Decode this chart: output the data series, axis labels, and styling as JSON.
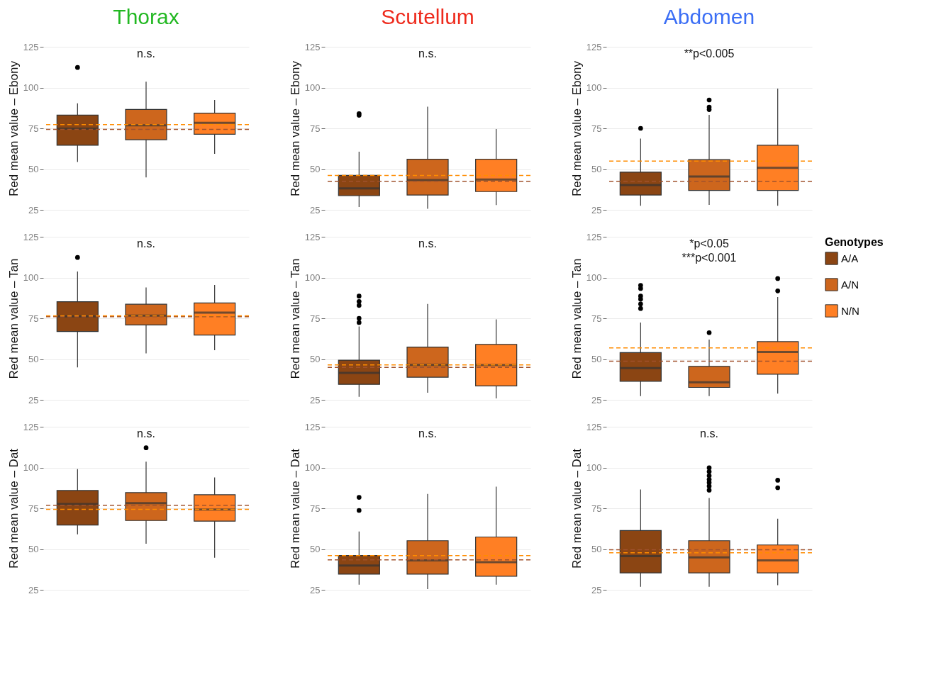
{
  "chart_data": [
    {
      "type": "box",
      "title": "Thorax",
      "ylabel": "Red mean value – Ebony",
      "categories": [
        null,
        null,
        null
      ],
      "ylim": [
        25,
        125
      ],
      "yticks": [
        25,
        50,
        75,
        100,
        125
      ],
      "grid": "y",
      "tick_labels": "y",
      "legend": false,
      "series": [
        {
          "color": "#8b4513",
          "boxes": [
            {
              "low": 54.4,
              "q1": 64.6,
              "median": 74.8,
              "q3": 83.1,
              "high": 90.3,
              "outliers": [
                112.3
              ]
            },
            null,
            null
          ]
        },
        {
          "color": "#cd661d",
          "boxes": [
            null,
            {
              "low": 44.9,
              "q1": 68,
              "median": 76.9,
              "q3": 86.6,
              "high": 103.6
            },
            null
          ]
        },
        {
          "color": "#ff7f24",
          "boxes": [
            null,
            null,
            {
              "low": 59.3,
              "q1": 71.4,
              "median": 78.4,
              "q3": 84.3,
              "high": 92.4
            }
          ]
        }
      ],
      "ref_lines": [
        {
          "axis": "y",
          "value": 74.4,
          "color": "#a0522d",
          "line_style": "dashed"
        },
        {
          "axis": "y",
          "value": 77.3,
          "color": "#ff8c00",
          "line_style": "dashed"
        }
      ],
      "annotations": [
        "n.s."
      ]
    },
    {
      "type": "box",
      "title": "Scutellum",
      "ylabel": "Red mean value – Ebony",
      "categories": [
        null,
        null,
        null
      ],
      "ylim": [
        25,
        125
      ],
      "yticks": [
        25,
        50,
        75,
        100,
        125
      ],
      "grid": "y",
      "tick_labels": "y",
      "legend": false,
      "series": [
        {
          "color": "#8b4513",
          "boxes": [
            {
              "low": 26.7,
              "q1": 33.7,
              "median": 38.1,
              "q3": 46.1,
              "high": 60.7,
              "outliers": [
                83,
                84
              ]
            },
            null,
            null
          ]
        },
        {
          "color": "#cd661d",
          "boxes": [
            null,
            {
              "low": 25.6,
              "q1": 34.1,
              "median": 43.3,
              "q3": 56,
              "high": 88.3
            },
            null
          ]
        },
        {
          "color": "#ff7f24",
          "boxes": [
            null,
            null,
            {
              "low": 27.9,
              "q1": 36.2,
              "median": 43.6,
              "q3": 56,
              "high": 74.6
            }
          ]
        }
      ],
      "ref_lines": [
        {
          "axis": "y",
          "value": 42.5,
          "color": "#a0522d",
          "line_style": "dashed"
        },
        {
          "axis": "y",
          "value": 46.1,
          "color": "#ff8c00",
          "line_style": "dashed"
        }
      ],
      "annotations": [
        "n.s."
      ]
    },
    {
      "type": "box",
      "title": "Abdomen",
      "ylabel": "Red mean value – Ebony",
      "categories": [
        null,
        null,
        null
      ],
      "ylim": [
        25,
        125
      ],
      "yticks": [
        25,
        50,
        75,
        100,
        125
      ],
      "grid": "y",
      "tick_labels": "y",
      "legend": false,
      "series": [
        {
          "color": "#8b4513",
          "boxes": [
            {
              "low": 27.5,
              "q1": 34.1,
              "median": 40.2,
              "q3": 48.1,
              "high": 68.7,
              "outliers": [
                75
              ]
            },
            null,
            null
          ]
        },
        {
          "color": "#cd661d",
          "boxes": [
            null,
            {
              "low": 28,
              "q1": 36.9,
              "median": 45.4,
              "q3": 55.8,
              "high": 83.3,
              "outliers": [
                86.5,
                88,
                92.4
              ]
            },
            null
          ]
        },
        {
          "color": "#ff7f24",
          "boxes": [
            null,
            null,
            {
              "low": 27.5,
              "q1": 36.9,
              "median": 50.8,
              "q3": 64.6,
              "high": 99.4
            }
          ]
        }
      ],
      "ref_lines": [
        {
          "axis": "y",
          "value": 42.5,
          "color": "#a0522d",
          "line_style": "dashed"
        },
        {
          "axis": "y",
          "value": 54.9,
          "color": "#ff8c00",
          "line_style": "dashed"
        }
      ],
      "annotations": [
        "**p<0.005"
      ]
    },
    {
      "type": "box",
      "ylabel": "Red mean value – Tan",
      "categories": [
        null,
        null,
        null
      ],
      "ylim": [
        25,
        125
      ],
      "yticks": [
        25,
        50,
        75,
        100,
        125
      ],
      "grid": "y",
      "tick_labels": "y",
      "legend": false,
      "series": [
        {
          "color": "#8b4513",
          "boxes": [
            {
              "low": 44.9,
              "q1": 66.9,
              "median": 76.2,
              "q3": 85.2,
              "high": 103.7,
              "outliers": [
                112.3
              ]
            },
            null,
            null
          ]
        },
        {
          "color": "#cd661d",
          "boxes": [
            null,
            {
              "low": 53.5,
              "q1": 70.9,
              "median": 76.6,
              "q3": 83.6,
              "high": 93.9
            },
            null
          ]
        },
        {
          "color": "#ff7f24",
          "boxes": [
            null,
            null,
            {
              "low": 55.4,
              "q1": 64.7,
              "median": 78.5,
              "q3": 84.4,
              "high": 95.4
            }
          ]
        }
      ],
      "ref_lines": [
        {
          "axis": "y",
          "value": 76,
          "color": "#a0522d",
          "line_style": "dashed"
        },
        {
          "axis": "y",
          "value": 76.5,
          "color": "#ff8c00",
          "line_style": "dashed"
        }
      ],
      "annotations": [
        "n.s."
      ]
    },
    {
      "type": "box",
      "ylabel": "Red mean value – Tan",
      "categories": [
        null,
        null,
        null
      ],
      "ylim": [
        25,
        125
      ],
      "yticks": [
        25,
        50,
        75,
        100,
        125
      ],
      "grid": "y",
      "tick_labels": "y",
      "legend": false,
      "series": [
        {
          "color": "#8b4513",
          "boxes": [
            {
              "low": 26.9,
              "q1": 34.5,
              "median": 41.5,
              "q3": 49.3,
              "high": 70,
              "outliers": [
                72.4,
                75,
                82.9,
                85.3,
                88.6
              ]
            },
            null,
            null
          ]
        },
        {
          "color": "#cd661d",
          "boxes": [
            null,
            {
              "low": 29.4,
              "q1": 38.9,
              "median": 46.4,
              "q3": 57.3,
              "high": 83.8
            },
            null
          ]
        },
        {
          "color": "#ff7f24",
          "boxes": [
            null,
            null,
            {
              "low": 25.9,
              "q1": 33.5,
              "median": 46.3,
              "q3": 59,
              "high": 74.3
            }
          ]
        }
      ],
      "ref_lines": [
        {
          "axis": "y",
          "value": 44.9,
          "color": "#a0522d",
          "line_style": "dashed"
        },
        {
          "axis": "y",
          "value": 46.4,
          "color": "#ff8c00",
          "line_style": "dashed"
        }
      ],
      "annotations": [
        "n.s."
      ]
    },
    {
      "type": "box",
      "ylabel": "Red mean value – Tan",
      "categories": [
        null,
        null,
        null
      ],
      "ylim": [
        25,
        125
      ],
      "yticks": [
        25,
        50,
        75,
        100,
        125
      ],
      "grid": "y",
      "tick_labels": "y",
      "legend": "right",
      "legend_title": "Genotypes",
      "series": [
        {
          "name": "A/A",
          "color": "#8b4513",
          "boxes": [
            {
              "low": 27.3,
              "q1": 36.4,
              "median": 44.5,
              "q3": 54,
              "high": 72.4,
              "outliers": [
                81,
                83.8,
                86.7,
                88.6,
                93.3,
                95.2
              ]
            },
            null,
            null
          ]
        },
        {
          "name": "A/N",
          "color": "#cd661d",
          "boxes": [
            null,
            {
              "low": 27.3,
              "q1": 32.6,
              "median": 35.8,
              "q3": 45.5,
              "high": 62,
              "outliers": [
                66.2
              ]
            },
            null
          ]
        },
        {
          "name": "N/N",
          "color": "#ff7f24",
          "boxes": [
            null,
            null,
            {
              "low": 28.8,
              "q1": 40.7,
              "median": 54.4,
              "q3": 60.7,
              "high": 88,
              "outliers": [
                91.8,
                99.4
              ]
            }
          ]
        }
      ],
      "ref_lines": [
        {
          "axis": "y",
          "value": 48.7,
          "color": "#a0522d",
          "line_style": "dashed"
        },
        {
          "axis": "y",
          "value": 56.9,
          "color": "#ff8c00",
          "line_style": "dashed"
        }
      ],
      "annotations": [
        "*p<0.05",
        "***p<0.001"
      ]
    },
    {
      "type": "box",
      "ylabel": "Red mean value – Dat",
      "categories": [
        null,
        null,
        null
      ],
      "ylim": [
        25,
        125
      ],
      "yticks": [
        25,
        50,
        75,
        100,
        125
      ],
      "grid": "y",
      "tick_labels": "y",
      "legend": false,
      "series": [
        {
          "color": "#8b4513",
          "boxes": [
            {
              "low": 59,
              "q1": 64.7,
              "median": 77.6,
              "q3": 85.9,
              "high": 99
            },
            null,
            null
          ]
        },
        {
          "color": "#cd661d",
          "boxes": [
            null,
            {
              "low": 53.3,
              "q1": 67.5,
              "median": 78.1,
              "q3": 84.6,
              "high": 103.6,
              "outliers": [
                112.1
              ]
            },
            null
          ]
        },
        {
          "color": "#ff7f24",
          "boxes": [
            null,
            null,
            {
              "low": 44.7,
              "q1": 67.1,
              "median": 74.2,
              "q3": 83.3,
              "high": 93.9
            }
          ]
        }
      ],
      "ref_lines": [
        {
          "axis": "y",
          "value": 76.8,
          "color": "#a0522d",
          "line_style": "dashed"
        },
        {
          "axis": "y",
          "value": 74.3,
          "color": "#ff8c00",
          "line_style": "dashed"
        }
      ],
      "annotations": [
        "n.s."
      ]
    },
    {
      "type": "box",
      "ylabel": "Red mean value – Dat",
      "categories": [
        null,
        null,
        null
      ],
      "ylim": [
        25,
        125
      ],
      "yticks": [
        25,
        50,
        75,
        100,
        125
      ],
      "grid": "y",
      "tick_labels": "y",
      "legend": false,
      "series": [
        {
          "color": "#8b4513",
          "boxes": [
            {
              "low": 28.2,
              "q1": 34.6,
              "median": 39.9,
              "q3": 46,
              "high": 60.8,
              "outliers": [
                73.7,
                81.7
              ]
            },
            null,
            null
          ]
        },
        {
          "color": "#cd661d",
          "boxes": [
            null,
            {
              "low": 25.4,
              "q1": 34.6,
              "median": 43,
              "q3": 55.1,
              "high": 83.8
            },
            null
          ]
        },
        {
          "color": "#ff7f24",
          "boxes": [
            null,
            null,
            {
              "low": 28.2,
              "q1": 33.3,
              "median": 42,
              "q3": 57.4,
              "high": 88.3
            }
          ]
        }
      ],
      "ref_lines": [
        {
          "axis": "y",
          "value": 43.4,
          "color": "#a0522d",
          "line_style": "dashed"
        },
        {
          "axis": "y",
          "value": 46,
          "color": "#ff8c00",
          "line_style": "dashed"
        }
      ],
      "annotations": [
        "n.s."
      ]
    },
    {
      "type": "box",
      "ylabel": "Red mean value – Dat",
      "categories": [
        null,
        null,
        null
      ],
      "ylim": [
        25,
        125
      ],
      "yticks": [
        25,
        50,
        75,
        100,
        125
      ],
      "grid": "y",
      "tick_labels": "y",
      "legend": false,
      "series": [
        {
          "color": "#8b4513",
          "boxes": [
            {
              "low": 26.9,
              "q1": 35.4,
              "median": 45.6,
              "q3": 61.4,
              "high": 86.5
            },
            null,
            null
          ]
        },
        {
          "color": "#cd661d",
          "boxes": [
            null,
            {
              "low": 26.9,
              "q1": 35.4,
              "median": 44.9,
              "q3": 55.1,
              "high": 81.3,
              "outliers": [
                86.1,
                88.6,
                90.8,
                92.7,
                95,
                97.5,
                99.8
              ]
            },
            null
          ]
        },
        {
          "color": "#ff7f24",
          "boxes": [
            null,
            null,
            {
              "low": 27.8,
              "q1": 35.4,
              "median": 43,
              "q3": 52.5,
              "high": 68.6,
              "outliers": [
                87.6,
                92.2
              ]
            }
          ]
        }
      ],
      "ref_lines": [
        {
          "axis": "y",
          "value": 49.6,
          "color": "#a0522d",
          "line_style": "dashed"
        },
        {
          "axis": "y",
          "value": 47.7,
          "color": "#ff8c00",
          "line_style": "dashed"
        }
      ],
      "annotations": [
        "n.s."
      ]
    }
  ]
}
